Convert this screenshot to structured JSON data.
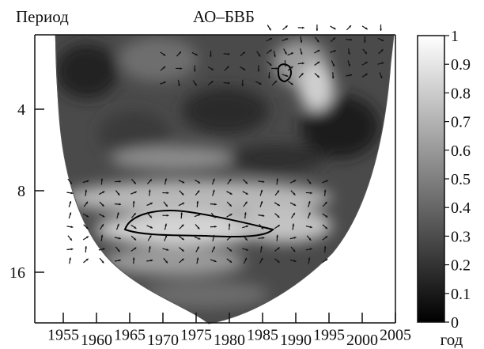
{
  "chart_data": {
    "type": "heatmap",
    "title": "АО–БВБ",
    "ylabel": "Период",
    "xlabel": "год",
    "x_ticks_top_row": [
      "1955",
      "1965",
      "1975",
      "1985",
      "1995",
      "2005"
    ],
    "x_ticks_bottom_row": [
      "1960",
      "1970",
      "1980",
      "1990",
      "2000"
    ],
    "x_tick_values": [
      1955,
      1960,
      1965,
      1970,
      1975,
      1980,
      1985,
      1990,
      1995,
      2000,
      2005
    ],
    "xlim": [
      1950,
      2008
    ],
    "y_ticks": [
      "4",
      "8",
      "16"
    ],
    "y_tick_values": [
      4,
      8,
      16
    ],
    "ylim": [
      2,
      22
    ],
    "y_scale": "log2",
    "colorbar": {
      "ticks": [
        "0",
        "0.1",
        "0.2",
        "0.3",
        "0.4",
        "0.5",
        "0.6",
        "0.7",
        "0.8",
        "0.9",
        "1"
      ],
      "range": [
        0,
        1
      ],
      "colormap": "gray (0 = black, 1 = white)"
    },
    "significance_contours": [
      {
        "year_center": 1990,
        "period_center": 2.6
      },
      {
        "year_center": 1975,
        "period_center": 11.2
      }
    ],
    "phase_arrow_regions": [
      {
        "years": [
          1970,
          1990
        ],
        "periods": [
          2.5,
          3.2
        ]
      },
      {
        "years": [
          1986,
          2003
        ],
        "periods": [
          2.0,
          3.0
        ]
      },
      {
        "years": [
          1956,
          1996
        ],
        "periods": [
          7.4,
          14.5
        ]
      }
    ],
    "grid": false,
    "legend": "colorbar-right"
  },
  "colors": {
    "axis": "#111111",
    "dark": "#1a1a1a",
    "mid": "#6a6a6a",
    "light": "#cfcfcf"
  }
}
